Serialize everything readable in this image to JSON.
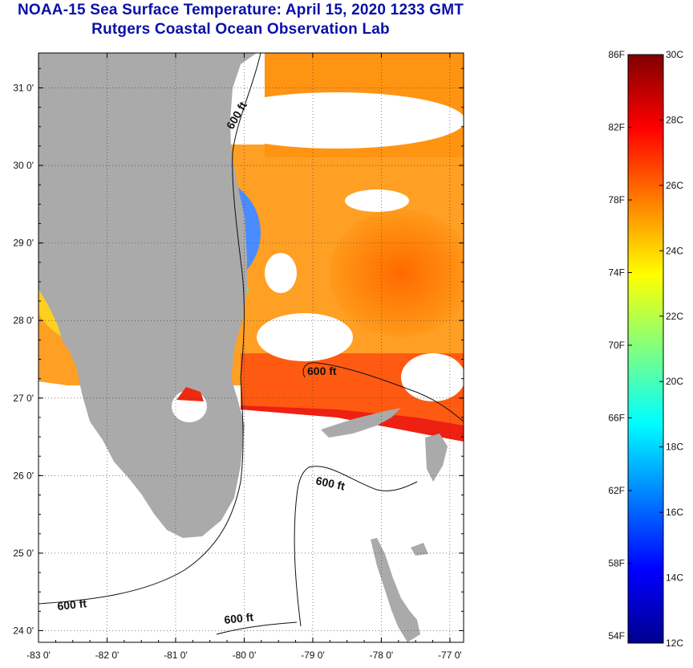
{
  "title": {
    "line1": "NOAA-15 Sea Surface Temperature:  April 15, 2020 1233 GMT",
    "line2": "Rutgers Coastal Ocean Observation Lab"
  },
  "map": {
    "lon_range": [
      -83.0,
      -76.8
    ],
    "lat_range": [
      23.85,
      31.45
    ],
    "x_ticks": [
      -83,
      -82,
      -81,
      -80,
      -79,
      -78,
      -77
    ],
    "x_tick_labels": [
      "-83 0'",
      "-82 0'",
      "-81 0'",
      "-80 0'",
      "-79 0'",
      "-78 0'",
      "-77 0'"
    ],
    "y_ticks": [
      24,
      25,
      26,
      27,
      28,
      29,
      30,
      31
    ],
    "y_tick_labels": [
      "24 0'",
      "25 0'",
      "26 0'",
      "27 0'",
      "28 0'",
      "29 0'",
      "30 0'",
      "31 0'"
    ],
    "grid": "dotted",
    "land_color": "#aaaaaa",
    "contour_labels": [
      "600 ft",
      "600 ft",
      "600 ft",
      "600 ft",
      "600 ft"
    ]
  },
  "colorbar": {
    "colors": [
      "#00008f",
      "#0000ff",
      "#0080ff",
      "#00ffff",
      "#80ff80",
      "#ffff00",
      "#ff8000",
      "#ff0000",
      "#800000"
    ],
    "fahrenheit_labels": [
      "54F",
      "58F",
      "62F",
      "66F",
      "70F",
      "74F",
      "78F",
      "82F",
      "86F"
    ],
    "celsius_labels": [
      "12C",
      "14C",
      "16C",
      "18C",
      "20C",
      "22C",
      "24C",
      "26C",
      "28C",
      "30C"
    ],
    "range_c": [
      12,
      30
    ]
  }
}
